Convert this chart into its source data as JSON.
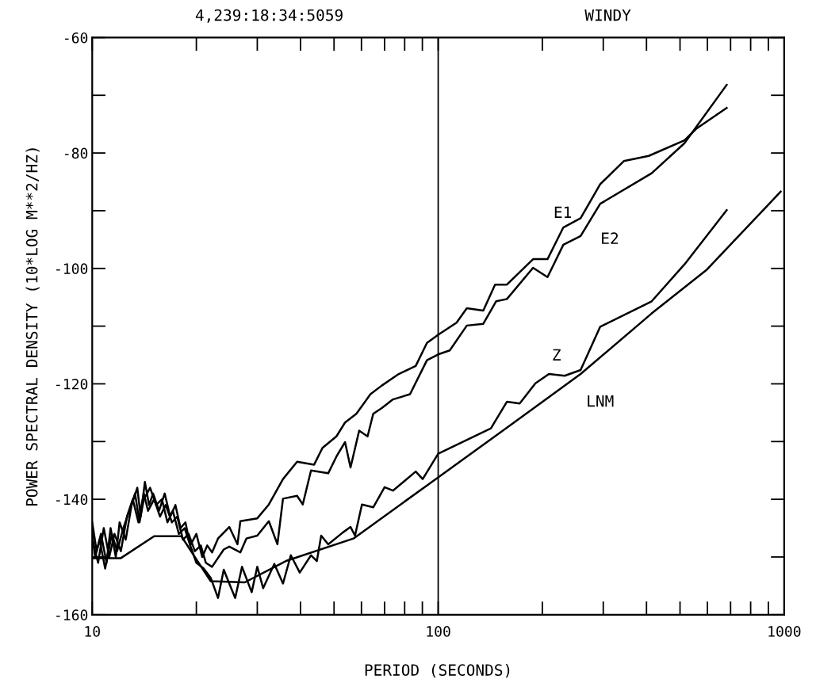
{
  "chart_data": {
    "type": "line",
    "title": "4,239:18:34:5059",
    "subtitle": "WINDY",
    "xlabel": "PERIOD (SECONDS)",
    "ylabel": "POWER SPECTRAL DENSITY (10*LOG M**2/HZ)",
    "log": "x",
    "xlim": [
      10,
      1000
    ],
    "ylim": [
      -160,
      -60
    ],
    "xticks": [
      10,
      100,
      1000
    ],
    "yticks": [
      -60,
      -80,
      -100,
      -120,
      -140,
      -160
    ],
    "grid": false,
    "marker": "none",
    "line_style": "solid",
    "ref_lines": [
      {
        "axis": "x",
        "value": 100,
        "label": null,
        "color": "#000000"
      }
    ],
    "series": [
      {
        "name": "E1",
        "color": "#000000",
        "x": [
          10,
          10.3,
          10.6,
          11,
          11.3,
          11.7,
          12,
          12.5,
          13,
          13.5,
          13.8,
          14.2,
          14.6,
          15,
          15.6,
          16.2,
          16.8,
          17.4,
          18,
          18.6,
          19.2,
          20,
          20.8,
          21.5,
          22.2,
          23.1,
          24.9,
          26.3,
          26.8,
          30.0,
          32.4,
          35.6,
          39.1,
          43.8,
          46.3,
          50.8,
          53.8,
          58.0,
          63.7,
          68.7,
          76.9,
          86.1,
          92.8,
          100,
          113,
          121,
          135,
          146,
          158,
          188,
          207,
          230,
          258,
          294,
          344,
          406,
          515,
          557,
          682
        ],
        "values": [
          -144,
          -149,
          -146,
          -151,
          -145,
          -150,
          -144,
          -147,
          -141,
          -138,
          -143,
          -137,
          -141,
          -139,
          -142,
          -139,
          -143,
          -141,
          -145,
          -144,
          -148,
          -146,
          -150,
          -148,
          -149.2,
          -146.8,
          -144.8,
          -147.8,
          -143.8,
          -143.3,
          -140.9,
          -136.5,
          -133.5,
          -134.0,
          -131.1,
          -129.1,
          -126.7,
          -125.2,
          -121.8,
          -120.3,
          -118.3,
          -116.9,
          -112.9,
          -111.5,
          -109.4,
          -106.9,
          -107.3,
          -102.8,
          -102.8,
          -98.4,
          -98.4,
          -92.9,
          -91.3,
          -85.4,
          -81.4,
          -80.5,
          -77.8,
          -75.8,
          -72.2
        ]
      },
      {
        "name": "E2",
        "color": "#000000",
        "x": [
          10,
          10.4,
          10.8,
          11.2,
          11.6,
          12.1,
          12.6,
          13.1,
          13.6,
          14.1,
          14.5,
          15.1,
          15.7,
          16.3,
          17,
          17.6,
          18.3,
          19,
          19.8,
          20.6,
          21.3,
          22.2,
          24.0,
          24.9,
          26.8,
          27.9,
          30.0,
          32.4,
          34.3,
          35.6,
          39.1,
          40.6,
          42.9,
          48.1,
          50.8,
          53.8,
          55.8,
          59.1,
          62.5,
          64.9,
          68.7,
          74.0,
          82.9,
          92.8,
          100,
          108,
          121,
          135,
          147,
          158,
          188,
          207,
          230,
          258,
          294,
          414,
          515,
          682
        ],
        "values": [
          -147,
          -151,
          -145,
          -150,
          -146,
          -149,
          -143,
          -140,
          -144,
          -139,
          -142,
          -140,
          -143,
          -141,
          -144,
          -143,
          -147,
          -146,
          -149,
          -148,
          -151,
          -151.7,
          -148.7,
          -148.2,
          -149.2,
          -146.8,
          -146.3,
          -143.8,
          -147.8,
          -139.9,
          -139.4,
          -140.9,
          -135.0,
          -135.5,
          -132.6,
          -130.1,
          -134.5,
          -128.1,
          -129.1,
          -125.2,
          -124.2,
          -122.7,
          -121.8,
          -115.9,
          -114.9,
          -114.2,
          -109.9,
          -109.6,
          -105.7,
          -105.3,
          -99.9,
          -101.5,
          -95.9,
          -94.4,
          -88.8,
          -83.5,
          -78.3,
          -68.2
        ]
      },
      {
        "name": "Z",
        "color": "#000000",
        "x": [
          10,
          10.2,
          10.5,
          10.9,
          11.4,
          11.8,
          12.3,
          12.8,
          13.3,
          13.7,
          14.1,
          14.7,
          15.3,
          15.9,
          16.5,
          17.1,
          17.8,
          18.5,
          19.2,
          20,
          21,
          22,
          23.1,
          24.0,
          24.9,
          25.9,
          27.1,
          28.9,
          30.0,
          31.2,
          33.6,
          35.6,
          37.5,
          39.8,
          42.9,
          44.6,
          45.9,
          48.1,
          52.9,
          55.8,
          57.5,
          60.2,
          64.9,
          70.0,
          74.0,
          79.7,
          86.1,
          90.2,
          100,
          142,
          158,
          172,
          191,
          209,
          232,
          258,
          294,
          414,
          515,
          682
        ],
        "values": [
          -146,
          -150,
          -147,
          -152,
          -146,
          -149,
          -145,
          -142,
          -139,
          -144,
          -140,
          -138,
          -141,
          -140,
          -144,
          -142,
          -146,
          -145,
          -148,
          -151,
          -152,
          -153.6,
          -157.1,
          -152.2,
          -154.6,
          -157.1,
          -151.7,
          -156.1,
          -151.7,
          -155.4,
          -151.2,
          -154.6,
          -149.7,
          -152.7,
          -149.7,
          -150.7,
          -146.3,
          -147.8,
          -145.8,
          -144.8,
          -146.3,
          -140.9,
          -141.4,
          -137.9,
          -138.5,
          -136.9,
          -135.2,
          -136.5,
          -132.1,
          -127.7,
          -123.1,
          -123.4,
          -119.9,
          -118.3,
          -118.6,
          -117.6,
          -110.1,
          -105.7,
          -99.3,
          -89.9
        ]
      },
      {
        "name": "LNM",
        "color": "#000000",
        "x": [
          10,
          12.1,
          15.1,
          18.1,
          22.0,
          27.6,
          36.3,
          56.9,
          100,
          158,
          258,
          414,
          598,
          977
        ],
        "values": [
          -150.2,
          -150.2,
          -146.4,
          -146.4,
          -154.2,
          -154.4,
          -150.7,
          -146.8,
          -136.2,
          -127.6,
          -118.3,
          -107.8,
          -100.2,
          -86.7
        ]
      }
    ]
  }
}
